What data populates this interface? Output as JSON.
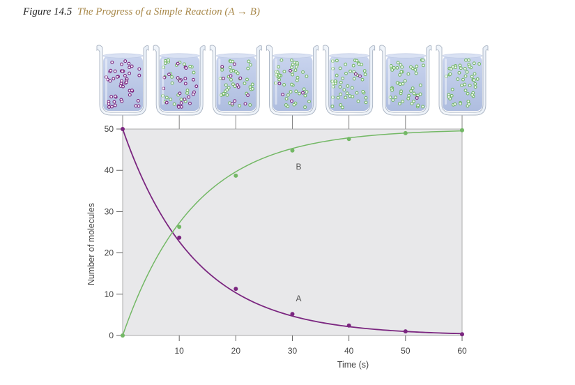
{
  "figure": {
    "label": "Figure 14.5",
    "title": "The Progress of a Simple Reaction (A → B)"
  },
  "chart_data": {
    "type": "line",
    "x": [
      0,
      10,
      20,
      30,
      40,
      50,
      60
    ],
    "series": [
      {
        "name": "A",
        "color": "#7b2680",
        "values": [
          50,
          23.7,
          11.3,
          5.2,
          2.4,
          1.0,
          0.3
        ]
      },
      {
        "name": "B",
        "color": "#73b865",
        "values": [
          0,
          26.3,
          38.7,
          44.8,
          47.6,
          49.0,
          49.7
        ]
      }
    ],
    "xlabel": "Time (s)",
    "ylabel": "Number of molecules",
    "xlim": [
      0,
      60
    ],
    "ylim": [
      0,
      50
    ],
    "xticks": [
      "10",
      "20",
      "30",
      "40",
      "50",
      "60"
    ],
    "yticks": [
      "0",
      "10",
      "20",
      "30",
      "40",
      "50"
    ],
    "grid": false,
    "plot_background": "#e8e8ea",
    "beaker_times": [
      0,
      10,
      20,
      30,
      40,
      50,
      60
    ],
    "beaker_molecule_count": 50
  }
}
